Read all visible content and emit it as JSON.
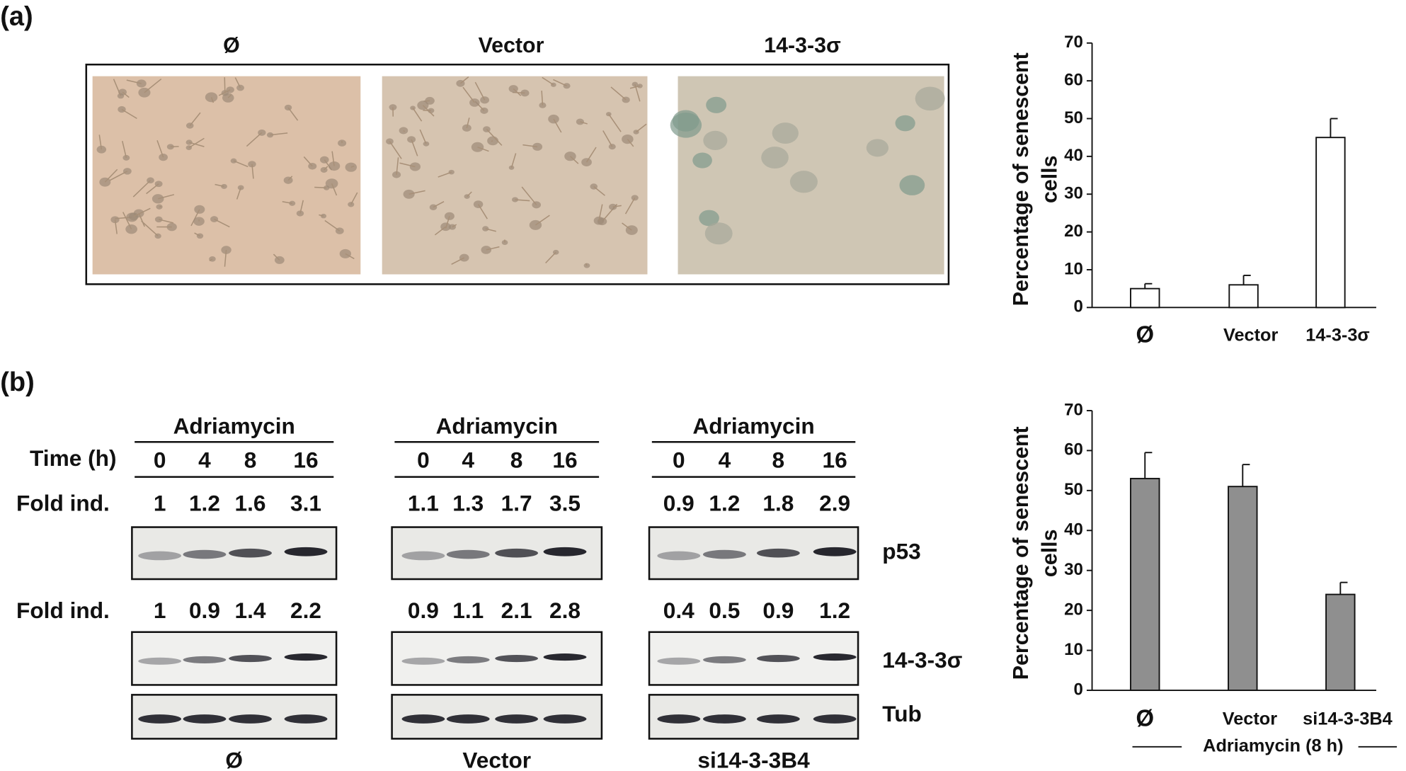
{
  "panel_a": {
    "label": "(a)",
    "image_labels": [
      "Ø",
      "Vector",
      "14-3-3σ"
    ]
  },
  "panel_b": {
    "label": "(b)",
    "time_label": "Time (h)",
    "fold_label": "Fold ind.",
    "row_labels": [
      "p53",
      "14-3-3σ",
      "Tub"
    ],
    "groups": [
      {
        "treatment": "Adriamycin",
        "times": [
          0,
          4,
          8,
          16
        ],
        "fold_p53": [
          1,
          1.2,
          1.6,
          3.1
        ],
        "fold_1433": [
          1,
          0.9,
          1.4,
          2.2
        ],
        "name": "Ø"
      },
      {
        "treatment": "Adriamycin",
        "times": [
          0,
          4,
          8,
          16
        ],
        "fold_p53": [
          1.1,
          1.3,
          1.7,
          3.5
        ],
        "fold_1433": [
          0.9,
          1.1,
          2.1,
          2.8
        ],
        "name": "Vector"
      },
      {
        "treatment": "Adriamycin",
        "times": [
          0,
          4,
          8,
          16
        ],
        "fold_p53": [
          0.9,
          1.2,
          1.8,
          2.9
        ],
        "fold_1433": [
          0.4,
          0.5,
          0.9,
          1.2
        ],
        "name": "si14-3-3B4"
      }
    ]
  },
  "chart_data": [
    {
      "type": "bar",
      "ylabel": [
        "Percentage of senescent",
        "cells"
      ],
      "categories": [
        "Ø",
        "Vector",
        "14-3-3σ"
      ],
      "values": [
        5,
        6,
        45
      ],
      "errors": [
        1.3,
        2.5,
        5
      ],
      "color": "#ffffff",
      "ylim": [
        0,
        70
      ],
      "yticks": [
        0,
        10,
        20,
        30,
        40,
        50,
        60,
        70
      ]
    },
    {
      "type": "bar",
      "ylabel": [
        "Percentage of senescent",
        "cells"
      ],
      "categories": [
        "Ø",
        "Vector",
        "si14-3-3B4"
      ],
      "xlabel": "Adriamycin (8 h)",
      "values": [
        53,
        51,
        24
      ],
      "errors": [
        6.5,
        5.5,
        3
      ],
      "color": "#8f8f8f",
      "ylim": [
        0,
        70
      ],
      "yticks": [
        0,
        10,
        20,
        30,
        40,
        50,
        60,
        70
      ]
    }
  ]
}
